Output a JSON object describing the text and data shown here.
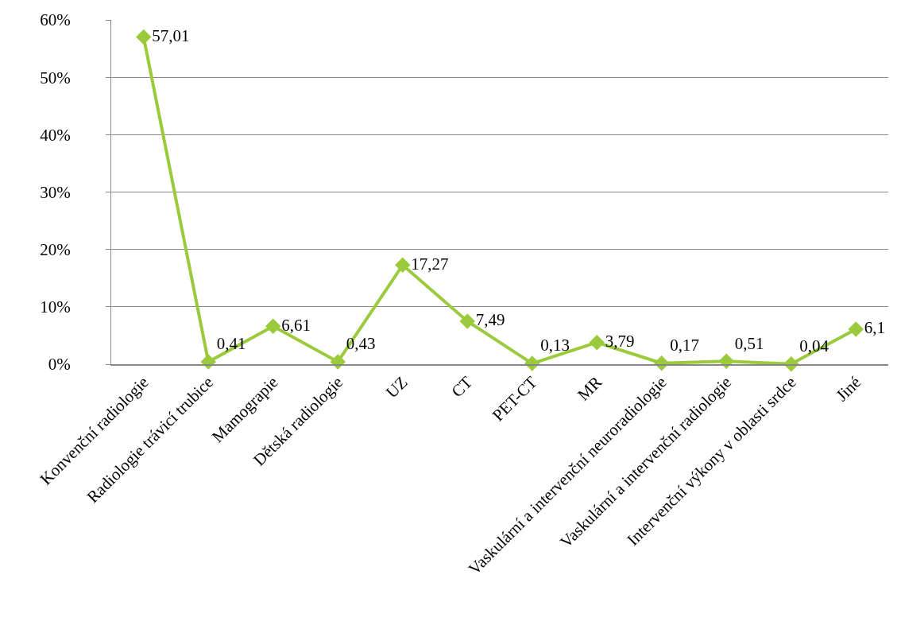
{
  "chart_data": {
    "type": "line",
    "categories": [
      "Konvenční radiologie",
      "Radiologie trávicí trubice",
      "Mamograpie",
      "Dětská radiologie",
      "UZ",
      "CT",
      "PET-CT",
      "MR",
      "Vaskulární a intervenční neuroradiologie",
      "Vaskulární a intervenční radiologie",
      "Intervenční výkony v oblasti srdce",
      "Jiné"
    ],
    "series": [
      {
        "color": "#9bcb3c",
        "values": [
          57.01,
          0.41,
          6.61,
          0.43,
          17.27,
          7.49,
          0.13,
          3.79,
          0.17,
          0.51,
          0.04,
          6.1
        ],
        "value_labels": [
          "57,01",
          "0,41",
          "6,61",
          "0,43",
          "17,27",
          "7,49",
          "0,13",
          "3,79",
          "0,17",
          "0,51",
          "0,04",
          "6,1"
        ]
      }
    ],
    "ylim": [
      0,
      60
    ],
    "yticks": [
      {
        "value": 0,
        "label": "0%"
      },
      {
        "value": 10,
        "label": "10%"
      },
      {
        "value": 20,
        "label": "20%"
      },
      {
        "value": 30,
        "label": "30%"
      },
      {
        "value": 40,
        "label": "40%"
      },
      {
        "value": 50,
        "label": "50%"
      },
      {
        "value": 60,
        "label": "60%"
      }
    ],
    "grid": "y",
    "marker": "diamond",
    "line_style": "solid"
  }
}
